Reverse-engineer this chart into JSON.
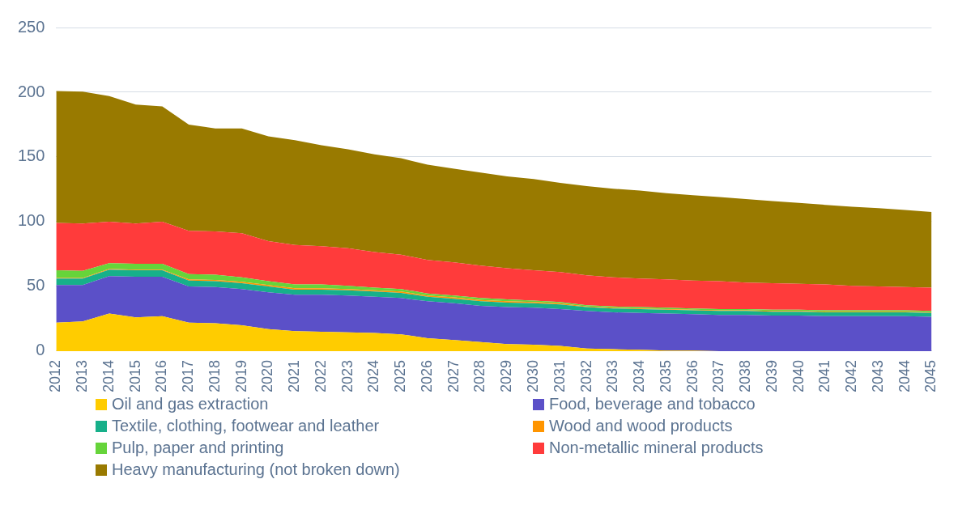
{
  "chart_data": {
    "type": "area",
    "stacked": true,
    "categories": [
      "2012",
      "2013",
      "2014",
      "2015",
      "2016",
      "2017",
      "2018",
      "2019",
      "2020",
      "2021",
      "2022",
      "2023",
      "2024",
      "2025",
      "2026",
      "2027",
      "2028",
      "2029",
      "2030",
      "2031",
      "2032",
      "2033",
      "2034",
      "2035",
      "2036",
      "2037",
      "2038",
      "2039",
      "2040",
      "2041",
      "2042",
      "2043",
      "2044",
      "2045"
    ],
    "ylim": [
      0,
      250
    ],
    "yticks": [
      0,
      50,
      100,
      150,
      200,
      250
    ],
    "grid": "y",
    "legend": "bottom",
    "series": [
      {
        "name": "Oil and gas extraction",
        "color": "#ffcc00",
        "values": [
          22,
          23,
          29,
          26,
          27,
          22,
          21.5,
          20,
          17,
          15.5,
          15,
          14.5,
          14,
          13,
          10,
          8.5,
          7,
          5.5,
          5,
          4,
          2,
          1.5,
          1,
          0.5,
          0.5,
          0,
          0,
          0,
          0,
          0,
          0,
          0,
          0,
          0
        ]
      },
      {
        "name": "Food, beverage and tobacco",
        "color": "#5b50c8",
        "values": [
          29,
          28,
          29,
          31.5,
          30.5,
          28,
          28,
          28,
          28.5,
          28,
          28.5,
          28.5,
          28,
          28,
          28.5,
          28.5,
          28,
          28.5,
          28.5,
          28.5,
          29,
          28.5,
          28.5,
          28.5,
          28,
          28,
          28,
          27.5,
          27.5,
          27,
          27,
          27,
          27,
          26.5
        ]
      },
      {
        "name": "Textile, clothing, footwear and leather",
        "color": "#17b08a",
        "values": [
          5,
          5,
          5,
          5,
          5,
          4.5,
          4.5,
          4.5,
          4.5,
          4,
          4,
          4,
          4,
          4,
          3.5,
          3.5,
          3.5,
          3.5,
          3.5,
          3.5,
          3,
          3,
          3,
          3,
          3,
          3,
          3,
          3,
          3,
          3,
          3,
          3,
          3,
          3
        ]
      },
      {
        "name": "Wood and wood products",
        "color": "#ff9500",
        "values": [
          0.5,
          0.5,
          0.5,
          0.5,
          0.5,
          1,
          1,
          1,
          1,
          1,
          1,
          1,
          1,
          1,
          1,
          1,
          1,
          1,
          1,
          1,
          0.5,
          0.5,
          0.5,
          0.5,
          0.5,
          0.5,
          0.5,
          0.5,
          0.5,
          0.5,
          0.5,
          0.5,
          0.5,
          0.5
        ]
      },
      {
        "name": "Pulp, paper and printing",
        "color": "#66d43a",
        "values": [
          6,
          5.5,
          4.5,
          4.5,
          4.5,
          4,
          4,
          3.5,
          3,
          3,
          3,
          2.5,
          2,
          2,
          1.5,
          1.5,
          1.5,
          1.5,
          1,
          1,
          1,
          1,
          1,
          1,
          1,
          1,
          1,
          1,
          1,
          1,
          1,
          1,
          1,
          1
        ]
      },
      {
        "name": "Non-metallic mineral products",
        "color": "#ff3b3b",
        "values": [
          36.5,
          36.5,
          32,
          31,
          32.5,
          33.5,
          33.5,
          34,
          31,
          30.5,
          29.5,
          29,
          27.5,
          26.5,
          26,
          25.5,
          25,
          24,
          23.5,
          23,
          23,
          22.5,
          22,
          22,
          21.5,
          21.5,
          20.5,
          20.5,
          20,
          20,
          19,
          18.5,
          18,
          18
        ]
      },
      {
        "name": "Heavy manufacturing (not broken down)",
        "color": "#997a00",
        "values": [
          102,
          102,
          97,
          92,
          89,
          82,
          79.5,
          81,
          81,
          81,
          78,
          76.5,
          75.5,
          74.5,
          73.5,
          72.5,
          72,
          71,
          70.5,
          69,
          69,
          68.5,
          68,
          66.5,
          66,
          65,
          64.5,
          63.5,
          62.5,
          61.5,
          61,
          60.5,
          59.5,
          58.5
        ]
      }
    ]
  }
}
